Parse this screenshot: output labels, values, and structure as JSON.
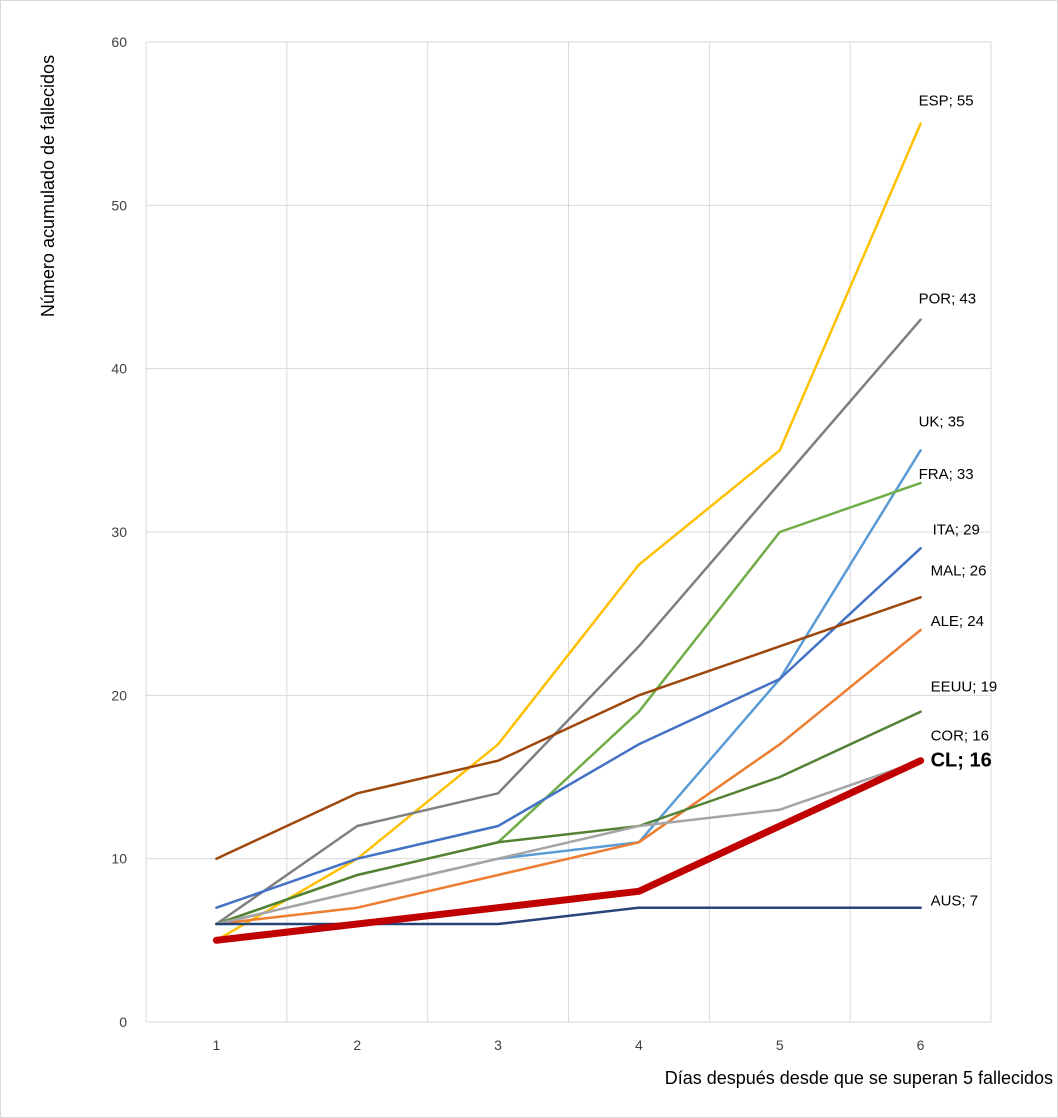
{
  "chart_data": {
    "type": "line",
    "xlabel": "Días después desde que se superan 5 fallecidos",
    "ylabel": "Número acumulado de fallecidos",
    "x": [
      1,
      2,
      3,
      4,
      5,
      6
    ],
    "x_tick_labels": [
      "1",
      "2",
      "3",
      "4",
      "5",
      "6"
    ],
    "y_tick_labels": [
      "0",
      "10",
      "20",
      "30",
      "40",
      "50",
      "60"
    ],
    "ylim": [
      0,
      60
    ],
    "grid": true,
    "legend": "none",
    "series": [
      {
        "name": "ESP",
        "values": [
          5,
          10,
          17,
          28,
          35,
          55
        ],
        "color": "#FFC000",
        "end_label": "ESP; 55"
      },
      {
        "name": "POR",
        "values": [
          6,
          12,
          14,
          23,
          33,
          43
        ],
        "color": "#7F7F7F",
        "end_label": "POR; 43"
      },
      {
        "name": "UK",
        "values": [
          6,
          8,
          10,
          11,
          21,
          35
        ],
        "color": "#5B9BD5",
        "end_label": "UK; 35"
      },
      {
        "name": "FRA",
        "values": [
          6,
          9,
          11,
          19,
          30,
          33
        ],
        "color": "#70AD47",
        "end_label": "FRA; 33"
      },
      {
        "name": "ITA",
        "values": [
          7,
          10,
          12,
          17,
          21,
          29
        ],
        "color": "#4472C4",
        "end_label": "ITA; 29"
      },
      {
        "name": "MAL",
        "values": [
          10,
          14,
          16,
          20,
          23,
          26
        ],
        "color": "#9E480E",
        "end_label": "MAL; 26"
      },
      {
        "name": "ALE",
        "values": [
          6,
          7,
          9,
          11,
          17,
          24
        ],
        "color": "#ED7D31",
        "end_label": "ALE; 24"
      },
      {
        "name": "EEUU",
        "values": [
          6,
          9,
          11,
          12,
          15,
          19
        ],
        "color": "#548235",
        "end_label": "EEUU; 19"
      },
      {
        "name": "COR",
        "values": [
          6,
          8,
          10,
          12,
          13,
          16
        ],
        "color": "#A5A5A5",
        "end_label": "COR; 16"
      },
      {
        "name": "AUS",
        "values": [
          6,
          6,
          6,
          7,
          7,
          7
        ],
        "color": "#264478",
        "end_label": "AUS; 7"
      },
      {
        "name": "CL",
        "values": [
          5,
          6,
          7,
          8,
          12,
          16
        ],
        "color": "#C00000",
        "end_label": "CL; 16",
        "emphasis": true
      }
    ]
  }
}
